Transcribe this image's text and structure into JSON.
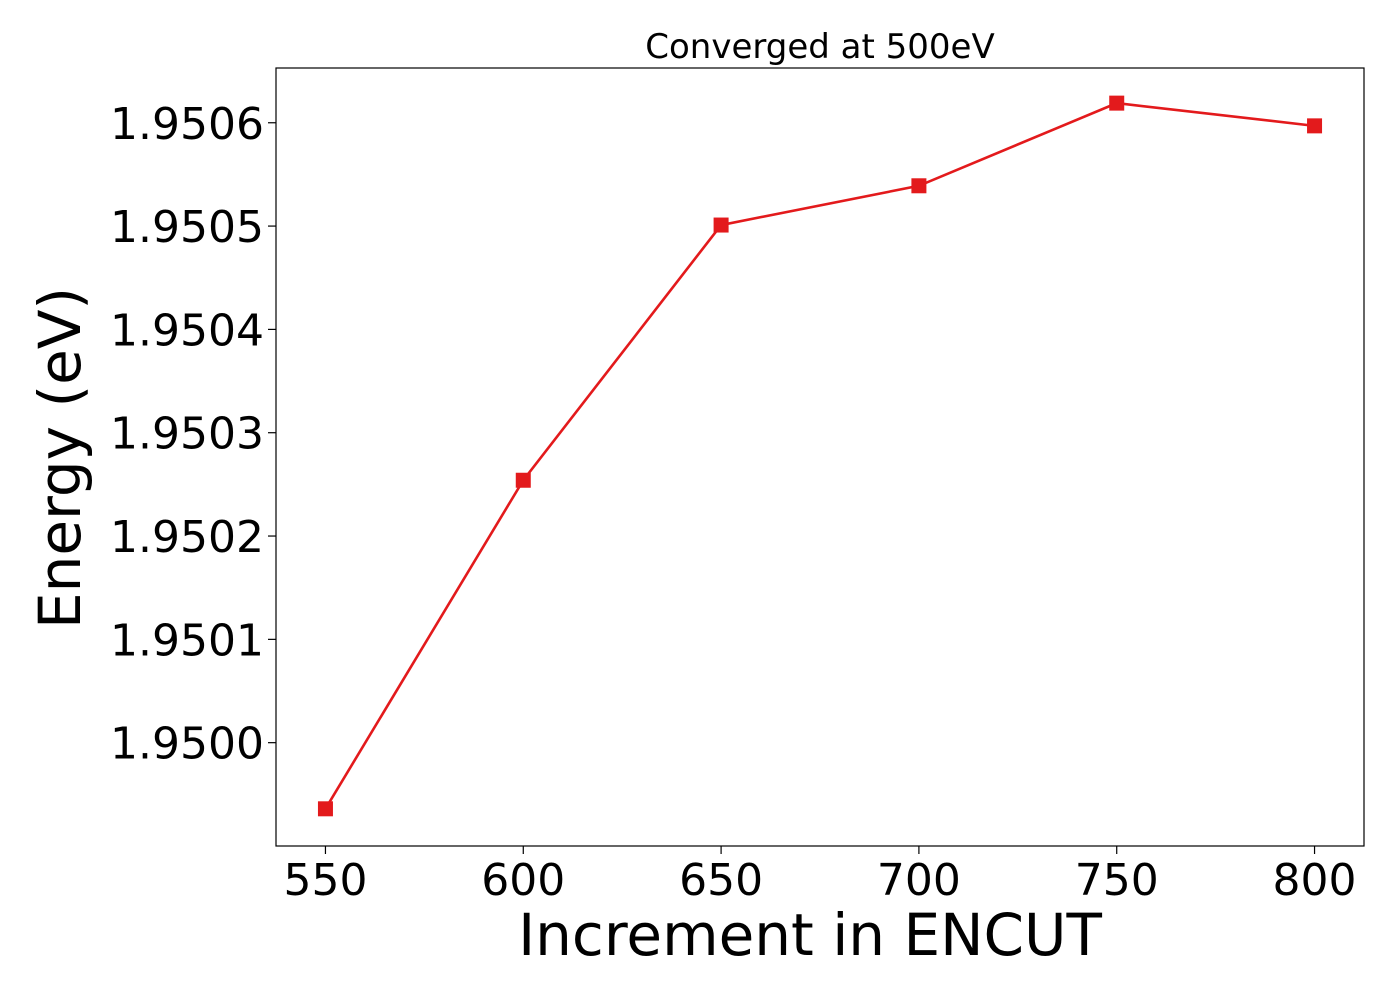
{
  "chart_data": {
    "type": "line",
    "title": "Converged at 500eV",
    "xlabel": "Increment in ENCUT",
    "ylabel": "Energy (eV)",
    "x": [
      550,
      600,
      650,
      700,
      750,
      800
    ],
    "series": [
      {
        "values": [
          1.949936,
          1.950254,
          1.950501,
          1.950539,
          1.950619,
          1.950597
        ],
        "color": "#e31a1c",
        "marker": "square"
      }
    ],
    "xlim": [
      537.5,
      812.5
    ],
    "ylim": [
      1.9499,
      1.950653
    ],
    "xticks": [
      550,
      600,
      650,
      700,
      750,
      800
    ],
    "xtick_labels": [
      "550",
      "600",
      "650",
      "700",
      "750",
      "800"
    ],
    "yticks": [
      1.95,
      1.9501,
      1.9502,
      1.9503,
      1.9504,
      1.9505,
      1.9506
    ],
    "ytick_labels": [
      "1.9500",
      "1.9501",
      "1.9502",
      "1.9503",
      "1.9504",
      "1.9505",
      "1.9506"
    ],
    "grid": false,
    "legend": "none"
  }
}
